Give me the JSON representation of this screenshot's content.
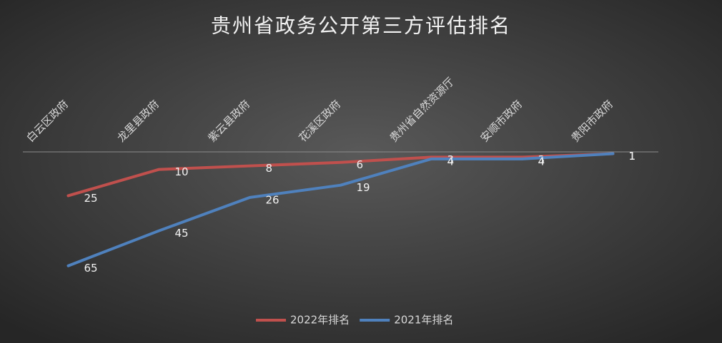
{
  "chart_data": {
    "type": "line",
    "title": "贵州省政务公开第三方评估排名",
    "categories": [
      "白云区政府",
      "龙里县政府",
      "紫云县政府",
      "花溪区政府",
      "贵州省自然资源厅",
      "安顺市政府",
      "贵阳市政府"
    ],
    "series": [
      {
        "name": "2022年排名",
        "color": "#c0504d",
        "values": [
          25,
          10,
          8,
          6,
          3,
          3,
          1
        ]
      },
      {
        "name": "2021年排名",
        "color": "#4f81bd",
        "values": [
          65,
          45,
          26,
          19,
          4,
          4,
          1
        ]
      }
    ],
    "ylim": [
      0,
      70
    ],
    "y_reversed": true,
    "legend": "bottom"
  }
}
